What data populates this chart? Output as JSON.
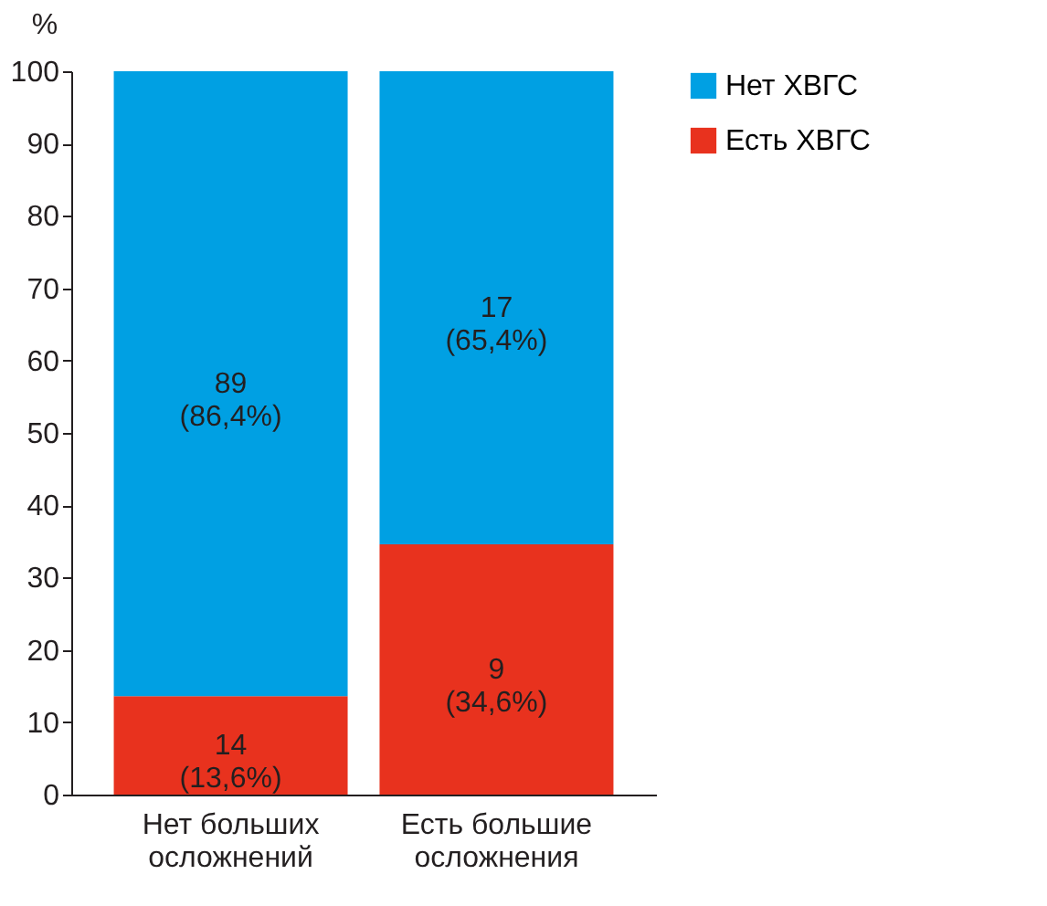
{
  "chart_data": {
    "type": "bar",
    "stacked": true,
    "ylabel": "%",
    "categories": [
      "Нет больших осложнений",
      "Есть большие осложнения"
    ],
    "series": [
      {
        "name": "Есть ХВГС",
        "color": "#e8321e",
        "values": [
          13.6,
          34.6
        ],
        "value_labels": [
          "14\n(13,6%)",
          "9\n(34,6%)"
        ]
      },
      {
        "name": "Нет ХВГС",
        "color": "#00a0e3",
        "values": [
          86.4,
          65.4
        ],
        "value_labels": [
          "89\n(86,4%)",
          "17\n(65,4%)"
        ]
      }
    ],
    "ylim": [
      0,
      100
    ],
    "yticks": [
      0,
      10,
      20,
      30,
      40,
      50,
      60,
      70,
      80,
      90,
      100
    ],
    "grid": false,
    "legend": "right"
  }
}
